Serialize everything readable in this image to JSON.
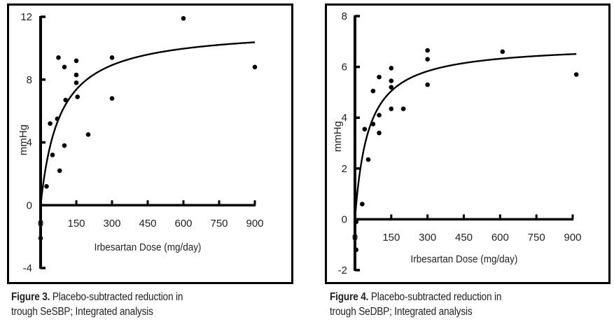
{
  "chart_data": [
    {
      "type": "scatter",
      "id": "fig3",
      "title": "",
      "xlabel": "Irbesartan Dose (mg/day)",
      "ylabel": "mmHg",
      "xlim": [
        0,
        900
      ],
      "ylim": [
        -4,
        12
      ],
      "xticks": [
        0,
        150,
        300,
        450,
        600,
        750,
        900
      ],
      "xtick_labels": [
        "0",
        "150",
        "300",
        "450",
        "600",
        "750",
        "900"
      ],
      "yticks": [
        -4,
        0,
        4,
        8,
        12
      ],
      "ytick_labels": [
        "-4",
        "0",
        "4",
        "8",
        "12"
      ],
      "grid": false,
      "legend": "none",
      "points": [
        {
          "x": 0,
          "y": -2.1
        },
        {
          "x": 25,
          "y": 1.2
        },
        {
          "x": 40,
          "y": 5.2
        },
        {
          "x": 50,
          "y": 3.2
        },
        {
          "x": 70,
          "y": 5.5
        },
        {
          "x": 75,
          "y": 9.4
        },
        {
          "x": 80,
          "y": 2.2
        },
        {
          "x": 100,
          "y": 8.8
        },
        {
          "x": 100,
          "y": 3.8
        },
        {
          "x": 105,
          "y": 6.7
        },
        {
          "x": 150,
          "y": 9.2
        },
        {
          "x": 150,
          "y": 8.3
        },
        {
          "x": 150,
          "y": 7.8
        },
        {
          "x": 155,
          "y": 6.9
        },
        {
          "x": 200,
          "y": 4.5
        },
        {
          "x": 300,
          "y": 9.4
        },
        {
          "x": 300,
          "y": 6.8
        },
        {
          "x": 600,
          "y": 11.9
        },
        {
          "x": 900,
          "y": 8.8
        }
      ],
      "fit_curve": {
        "model": "Emax",
        "emax": 11.3,
        "ed50": 80,
        "x_range": [
          0,
          900
        ]
      },
      "caption": {
        "label": "Figure 3.",
        "line1": " Placebo-subtracted reduction in",
        "line2": "trough SeSBP; Integrated analysis"
      }
    },
    {
      "type": "scatter",
      "id": "fig4",
      "title": "",
      "xlabel": "Irbesartan Dose (mg/day)",
      "ylabel": "mmHg",
      "xlim": [
        0,
        900
      ],
      "ylim": [
        -2,
        8
      ],
      "xticks": [
        0,
        150,
        300,
        450,
        600,
        750,
        900
      ],
      "xtick_labels": [
        "0",
        "150",
        "300",
        "450",
        "600",
        "750",
        "900"
      ],
      "yticks": [
        -2,
        0,
        2,
        4,
        6,
        8
      ],
      "ytick_labels": [
        "-2",
        "0",
        "2",
        "4",
        "6",
        "8"
      ],
      "grid": false,
      "legend": "none",
      "points": [
        {
          "x": 5,
          "y": -0.1
        },
        {
          "x": 5,
          "y": -1.2
        },
        {
          "x": 30,
          "y": 0.6
        },
        {
          "x": 40,
          "y": 3.55
        },
        {
          "x": 55,
          "y": 2.35
        },
        {
          "x": 75,
          "y": 3.75
        },
        {
          "x": 75,
          "y": 5.05
        },
        {
          "x": 100,
          "y": 3.4
        },
        {
          "x": 100,
          "y": 4.1
        },
        {
          "x": 100,
          "y": 5.6
        },
        {
          "x": 150,
          "y": 5.95
        },
        {
          "x": 150,
          "y": 5.45
        },
        {
          "x": 150,
          "y": 5.2
        },
        {
          "x": 150,
          "y": 4.35
        },
        {
          "x": 200,
          "y": 4.35
        },
        {
          "x": 300,
          "y": 6.65
        },
        {
          "x": 300,
          "y": 6.3
        },
        {
          "x": 300,
          "y": 5.3
        },
        {
          "x": 610,
          "y": 6.6
        },
        {
          "x": 915,
          "y": 5.7
        }
      ],
      "fit_curve": {
        "model": "Emax",
        "emax": 6.9,
        "ed50": 55,
        "x_range": [
          0,
          915
        ]
      },
      "caption": {
        "label": "Figure 4.",
        "line1": " Placebo-subtracted reduction in",
        "line2": "trough SeDBP; Integrated analysis"
      }
    }
  ]
}
